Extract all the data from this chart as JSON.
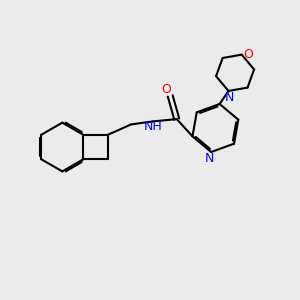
{
  "bg_color": "#ebebeb",
  "bond_color": "#000000",
  "bond_width": 1.5,
  "atom_colors": {
    "N": "#0000ff",
    "O": "#ff0000",
    "C": "#000000"
  },
  "font_size": 9,
  "fig_size": [
    3.0,
    3.0
  ],
  "dpi": 100
}
